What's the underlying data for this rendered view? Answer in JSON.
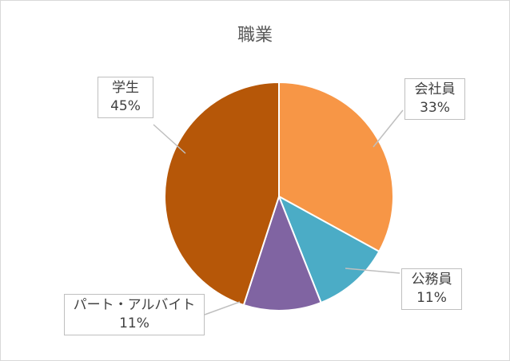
{
  "chart_data": {
    "type": "pie",
    "title": "職業",
    "slices": [
      {
        "label": "会社員",
        "value": 33,
        "value_label": "33%",
        "color": "#F79646"
      },
      {
        "label": "公務員",
        "value": 11,
        "value_label": "11%",
        "color": "#4BACC6"
      },
      {
        "label": "パート・アルバイト",
        "value": 11,
        "value_label": "11%",
        "color": "#8064A2"
      },
      {
        "label": "学生",
        "value": 45,
        "value_label": "45%",
        "color": "#B65708"
      }
    ],
    "start_angle_deg": 0,
    "direction": "clockwise",
    "legend": "none"
  }
}
